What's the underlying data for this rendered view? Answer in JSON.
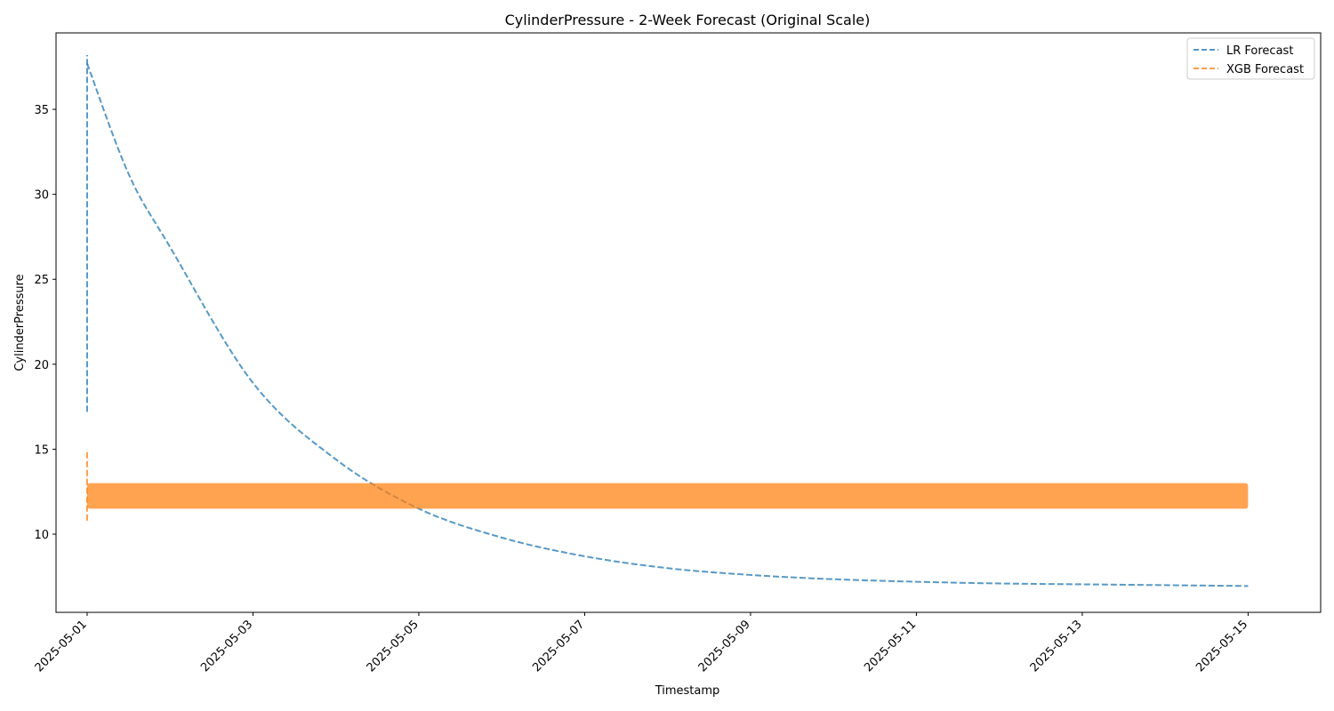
{
  "chart_data": {
    "type": "line",
    "title": "CylinderPressure - 2-Week Forecast (Original Scale)",
    "xlabel": "Timestamp",
    "ylabel": "CylinderPressure",
    "x_range": [
      "2025-04-30T15:00:00",
      "2025-05-15T21:00:00"
    ],
    "ylim": [
      5.4,
      39.5
    ],
    "x_ticks": [
      "2025-05-01",
      "2025-05-03",
      "2025-05-05",
      "2025-05-07",
      "2025-05-09",
      "2025-05-11",
      "2025-05-13",
      "2025-05-15"
    ],
    "y_ticks": [
      10,
      15,
      20,
      25,
      30,
      35
    ],
    "grid": false,
    "legend_position": "top-right",
    "series": [
      {
        "name": "LR Forecast",
        "color": "#1f77b4",
        "style": "dashed",
        "initial_spike": {
          "x": "2025-05-01T00:00:00",
          "y_min": 17.2,
          "y_max": 38.2
        },
        "x": [
          "2025-05-01T00:00:00",
          "2025-05-01T12:00:00",
          "2025-05-02T00:00:00",
          "2025-05-03T00:00:00",
          "2025-05-04T00:00:00",
          "2025-05-05T00:00:00",
          "2025-05-06T00:00:00",
          "2025-05-07T00:00:00",
          "2025-05-08T00:00:00",
          "2025-05-09T00:00:00",
          "2025-05-10T00:00:00",
          "2025-05-11T00:00:00",
          "2025-05-12T00:00:00",
          "2025-05-13T00:00:00",
          "2025-05-14T00:00:00",
          "2025-05-15T00:00:00"
        ],
        "values": [
          37.7,
          31.2,
          26.9,
          18.9,
          14.4,
          11.5,
          9.8,
          8.7,
          8.0,
          7.6,
          7.35,
          7.2,
          7.1,
          7.05,
          7.0,
          6.95
        ]
      },
      {
        "name": "XGB Forecast",
        "color": "#ff7f0e",
        "style": "dashed",
        "initial_spike": {
          "x": "2025-05-01T00:00:00",
          "y_min": 10.8,
          "y_max": 15.0
        },
        "band": {
          "x_start": "2025-05-01T00:00:00",
          "x_end": "2025-05-15T00:00:00",
          "y_low": 11.5,
          "y_high": 13.0
        }
      }
    ]
  }
}
